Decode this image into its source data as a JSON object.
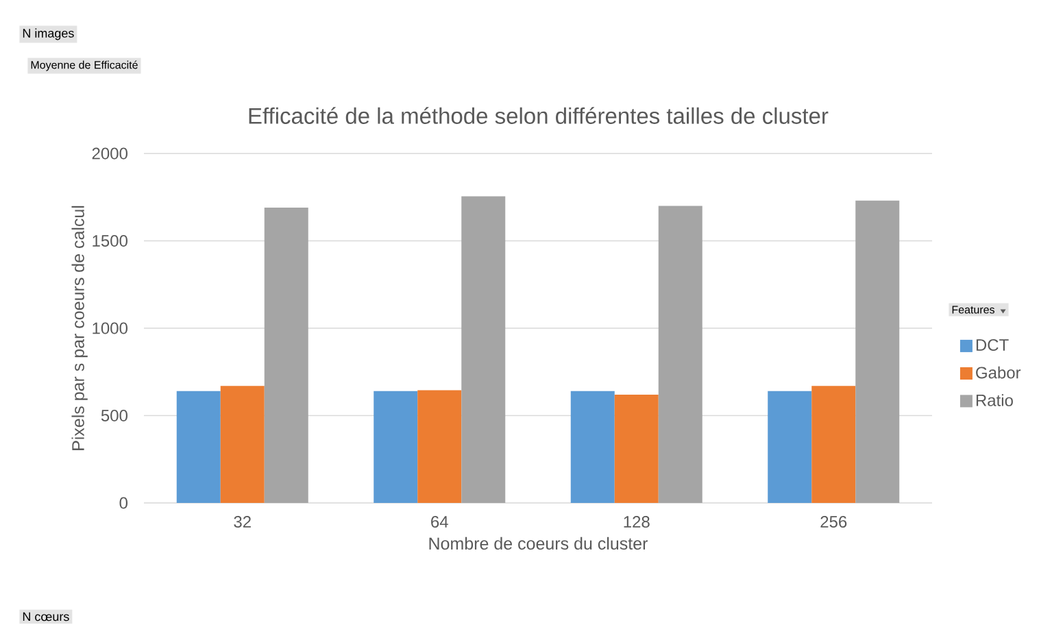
{
  "chart_data": {
    "type": "bar",
    "title": "Efficacité de la méthode selon différentes tailles de cluster",
    "xlabel": "Nombre de coeurs du cluster",
    "ylabel": "Pixels par s par coeurs de calcul",
    "legend_title": "Features",
    "categories": [
      "32",
      "64",
      "128",
      "256"
    ],
    "series": [
      {
        "name": "DCT",
        "color": "#5b9bd5",
        "values": [
          640,
          640,
          640,
          640
        ]
      },
      {
        "name": "Gabor",
        "color": "#ed7d31",
        "values": [
          670,
          645,
          620,
          670
        ]
      },
      {
        "name": "Ratio",
        "color": "#a5a5a5",
        "values": [
          1690,
          1755,
          1700,
          1730
        ]
      }
    ],
    "ylim": [
      0,
      2000
    ],
    "yticks": [
      0,
      500,
      1000,
      1500,
      2000
    ],
    "grid": "y",
    "legend": "right",
    "annotations": [
      "N images",
      "Moyenne de Efficacité",
      "N cœurs"
    ]
  }
}
